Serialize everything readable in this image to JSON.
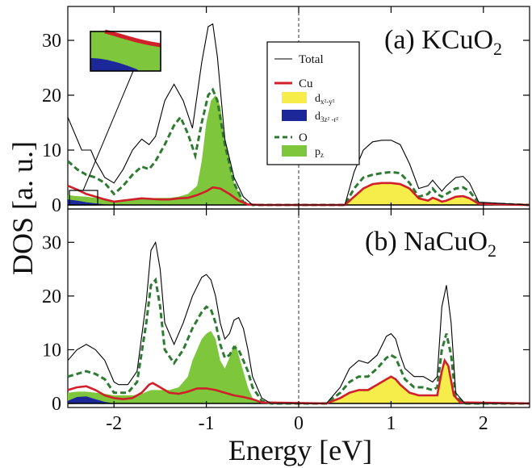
{
  "chart_data": {
    "type": "line",
    "xlabel": "Energy [eV]",
    "ylabel": "DOS [a. u.]",
    "xlim": [
      -2.5,
      2.5
    ],
    "ylim": [
      0,
      35
    ],
    "x_ticks": [
      "-2",
      "-1",
      "0",
      "1",
      "2"
    ],
    "y_ticks": [
      "0",
      "10",
      "20",
      "30"
    ],
    "fermi_level_x": 0,
    "colors": {
      "total": "#000000",
      "cu": "#d0202a",
      "o": "#2e7a32",
      "dx2y2": "#f6ec4a",
      "d3z2r2": "#1c2899",
      "pz": "#7ec63b"
    },
    "legend": {
      "total": "Total",
      "cu": "Cu",
      "dx2y2_main": "d",
      "dx2y2_sub": "x²-y²",
      "d3z2r2_main": "d",
      "d3z2r2_sub": "3z² -r²",
      "o": "O",
      "pz_main": "p",
      "pz_sub": "z"
    },
    "panels": [
      {
        "label_prefix": "(a) KCuO",
        "label_sub": "2",
        "series": {
          "total": {
            "x": [
              -2.5,
              -2.35,
              -2.25,
              -2.2,
              -2.1,
              -2.0,
              -1.9,
              -1.8,
              -1.7,
              -1.62,
              -1.55,
              -1.45,
              -1.35,
              -1.25,
              -1.15,
              -1.05,
              -0.98,
              -0.93,
              -0.88,
              -0.8,
              -0.7,
              -0.6,
              -0.5,
              -0.3,
              0.5,
              0.6,
              0.7,
              0.8,
              0.9,
              1.0,
              1.1,
              1.2,
              1.3,
              1.4,
              1.45,
              1.5,
              1.55,
              1.6,
              1.7,
              1.78,
              1.85,
              1.95,
              2.5
            ],
            "y": [
              16.0,
              10.0,
              10.0,
              8.0,
              5.0,
              4.0,
              6.5,
              10.0,
              12.0,
              11.0,
              12.5,
              19.0,
              22.0,
              19.0,
              14.0,
              26.0,
              32.5,
              33.0,
              27.0,
              12.0,
              5.0,
              1.5,
              0.0,
              0.0,
              0.0,
              6.0,
              10.0,
              11.5,
              11.8,
              11.8,
              11.0,
              7.5,
              3.0,
              3.5,
              4.5,
              3.5,
              2.5,
              3.5,
              5.0,
              5.2,
              4.0,
              0.5,
              0.0
            ]
          },
          "o": {
            "x": [
              -2.5,
              -2.4,
              -2.3,
              -2.2,
              -2.1,
              -2.0,
              -1.9,
              -1.8,
              -1.7,
              -1.62,
              -1.55,
              -1.45,
              -1.35,
              -1.28,
              -1.2,
              -1.12,
              -1.05,
              -0.98,
              -0.93,
              -0.88,
              -0.8,
              -0.7,
              -0.6,
              -0.5,
              -0.3,
              0.5,
              0.6,
              0.7,
              0.8,
              0.9,
              1.0,
              1.1,
              1.2,
              1.3,
              1.4,
              1.45,
              1.5,
              1.55,
              1.6,
              1.7,
              1.78,
              1.85,
              1.95,
              2.5
            ],
            "y": [
              8.0,
              6.5,
              5.5,
              5.0,
              4.0,
              2.0,
              3.5,
              5.5,
              7.0,
              6.5,
              8.0,
              11.0,
              14.5,
              16.0,
              13.0,
              9.0,
              15.0,
              20.0,
              21.0,
              19.0,
              11.0,
              4.0,
              0.5,
              0.0,
              0.0,
              0.0,
              3.0,
              5.0,
              5.5,
              5.8,
              6.0,
              5.8,
              4.0,
              1.5,
              2.0,
              3.0,
              2.0,
              1.5,
              2.0,
              3.0,
              3.2,
              2.5,
              0.3,
              0.0
            ]
          },
          "pz": {
            "x": [
              -2.5,
              -2.4,
              -2.3,
              -2.2,
              -2.1,
              -2.0,
              -1.9,
              -1.8,
              -1.7,
              -1.6,
              -1.5,
              -1.4,
              -1.3,
              -1.2,
              -1.1,
              -1.05,
              -1.0,
              -0.95,
              -0.9,
              -0.85,
              -0.8,
              -0.7,
              -0.6,
              -0.5,
              -0.3,
              2.5
            ],
            "y": [
              1.8,
              1.6,
              1.5,
              1.3,
              1.0,
              0.5,
              0.8,
              1.0,
              1.3,
              1.2,
              1.3,
              1.3,
              1.5,
              2.0,
              3.5,
              8.0,
              15.0,
              19.0,
              20.0,
              18.0,
              12.0,
              4.0,
              0.5,
              0.0,
              0.0,
              0.0
            ]
          },
          "cu": {
            "x": [
              -2.5,
              -2.4,
              -2.3,
              -2.2,
              -2.1,
              -2.0,
              -1.9,
              -1.8,
              -1.7,
              -1.6,
              -1.5,
              -1.4,
              -1.3,
              -1.2,
              -1.1,
              -1.0,
              -0.93,
              -0.85,
              -0.75,
              -0.65,
              -0.55,
              -0.4,
              0.5,
              0.6,
              0.7,
              0.8,
              0.9,
              1.0,
              1.1,
              1.2,
              1.3,
              1.4,
              1.45,
              1.5,
              1.55,
              1.6,
              1.7,
              1.78,
              1.85,
              1.95,
              2.5
            ],
            "y": [
              3.5,
              2.8,
              2.0,
              1.5,
              1.0,
              0.6,
              0.8,
              1.0,
              1.2,
              1.1,
              1.0,
              1.0,
              1.2,
              1.3,
              1.8,
              2.5,
              3.2,
              3.0,
              2.0,
              0.8,
              0.1,
              0.0,
              0.0,
              1.5,
              3.0,
              3.8,
              4.0,
              4.0,
              3.8,
              3.0,
              1.2,
              0.8,
              1.3,
              1.0,
              0.6,
              0.8,
              1.5,
              1.6,
              1.2,
              0.2,
              0.0
            ]
          },
          "dx2y2": {
            "x": [
              -2.5,
              0.5,
              0.6,
              0.7,
              0.8,
              0.9,
              1.0,
              1.1,
              1.2,
              1.3,
              1.4,
              1.45,
              1.5,
              1.55,
              1.6,
              1.7,
              1.78,
              1.85,
              1.95,
              2.5
            ],
            "y": [
              0.0,
              0.0,
              1.5,
              3.0,
              3.8,
              4.0,
              4.0,
              3.8,
              3.0,
              1.2,
              0.8,
              1.3,
              1.0,
              0.6,
              0.8,
              1.5,
              1.6,
              1.2,
              0.2,
              0.0
            ]
          },
          "d3z2r2": {
            "x": [
              -2.5,
              -2.4,
              -2.3,
              -2.2,
              -2.1,
              -2.0,
              2.5
            ],
            "y": [
              1.0,
              0.8,
              0.5,
              0.3,
              0.1,
              0.0,
              0.0
            ]
          }
        }
      },
      {
        "label_prefix": "(b) NaCuO",
        "label_sub": "2",
        "series": {
          "total": {
            "x": [
              -2.5,
              -2.4,
              -2.3,
              -2.2,
              -2.1,
              -2.0,
              -1.95,
              -1.85,
              -1.75,
              -1.65,
              -1.6,
              -1.55,
              -1.5,
              -1.45,
              -1.35,
              -1.25,
              -1.15,
              -1.05,
              -1.0,
              -0.95,
              -0.9,
              -0.85,
              -0.8,
              -0.75,
              -0.7,
              -0.65,
              -0.6,
              -0.55,
              -0.5,
              -0.4,
              -0.3,
              0.3,
              0.45,
              0.55,
              0.65,
              0.75,
              0.85,
              0.95,
              1.0,
              1.05,
              1.1,
              1.15,
              1.25,
              1.35,
              1.45,
              1.5,
              1.55,
              1.6,
              1.65,
              1.7,
              1.8,
              2.5
            ],
            "y": [
              8.0,
              10.0,
              11.0,
              10.0,
              8.0,
              4.0,
              3.5,
              3.5,
              6.0,
              19.0,
              28.5,
              30.0,
              25.0,
              15.0,
              11.0,
              15.0,
              20.0,
              23.5,
              24.0,
              23.0,
              20.0,
              15.0,
              12.0,
              13.0,
              15.5,
              16.0,
              14.0,
              10.0,
              5.0,
              1.0,
              0.0,
              0.0,
              3.0,
              6.5,
              8.0,
              7.5,
              9.0,
              12.5,
              13.0,
              12.0,
              9.0,
              6.5,
              5.0,
              5.0,
              4.0,
              5.0,
              18.0,
              22.0,
              15.0,
              2.0,
              0.0,
              0.0
            ]
          },
          "o": {
            "x": [
              -2.5,
              -2.4,
              -2.3,
              -2.2,
              -2.1,
              -2.0,
              -1.95,
              -1.85,
              -1.75,
              -1.65,
              -1.6,
              -1.55,
              -1.5,
              -1.45,
              -1.35,
              -1.25,
              -1.15,
              -1.05,
              -1.0,
              -0.95,
              -0.9,
              -0.85,
              -0.8,
              -0.75,
              -0.7,
              -0.65,
              -0.6,
              -0.55,
              -0.5,
              -0.4,
              -0.3,
              0.3,
              0.45,
              0.55,
              0.65,
              0.75,
              0.85,
              0.95,
              1.0,
              1.05,
              1.1,
              1.15,
              1.25,
              1.35,
              1.45,
              1.5,
              1.55,
              1.6,
              1.65,
              1.7,
              1.8,
              2.5
            ],
            "y": [
              5.0,
              5.5,
              6.0,
              5.5,
              4.5,
              2.0,
              2.0,
              2.0,
              4.0,
              15.0,
              22.0,
              23.0,
              18.0,
              10.0,
              7.5,
              10.0,
              14.0,
              17.0,
              18.0,
              17.5,
              15.0,
              11.0,
              8.5,
              9.0,
              10.5,
              10.0,
              8.0,
              6.0,
              3.0,
              0.5,
              0.0,
              0.0,
              2.0,
              4.0,
              5.0,
              5.0,
              6.5,
              8.5,
              9.0,
              8.5,
              6.5,
              4.5,
              3.0,
              3.0,
              2.5,
              3.0,
              10.0,
              13.0,
              9.0,
              1.2,
              0.0,
              0.0
            ]
          },
          "pz": {
            "x": [
              -2.5,
              -2.4,
              -2.3,
              -2.2,
              -2.1,
              -2.0,
              -1.9,
              -1.8,
              -1.7,
              -1.6,
              -1.5,
              -1.4,
              -1.3,
              -1.2,
              -1.15,
              -1.1,
              -1.05,
              -1.0,
              -0.95,
              -0.9,
              -0.85,
              -0.8,
              -0.75,
              -0.72,
              -0.68,
              -0.65,
              -0.6,
              -0.55,
              -0.5,
              -0.4,
              -0.3,
              2.5
            ],
            "y": [
              2.0,
              2.2,
              2.2,
              2.0,
              1.8,
              1.5,
              1.5,
              1.5,
              1.8,
              2.5,
              2.5,
              2.5,
              3.0,
              5.0,
              8.0,
              10.0,
              12.0,
              13.0,
              13.5,
              12.0,
              8.0,
              6.5,
              8.5,
              10.0,
              11.0,
              9.0,
              6.0,
              3.0,
              1.0,
              0.2,
              0.0,
              0.0
            ]
          },
          "cu": {
            "x": [
              -2.5,
              -2.4,
              -2.3,
              -2.2,
              -2.1,
              -2.0,
              -1.9,
              -1.8,
              -1.7,
              -1.62,
              -1.58,
              -1.5,
              -1.4,
              -1.3,
              -1.2,
              -1.1,
              -1.0,
              -0.9,
              -0.8,
              -0.7,
              -0.6,
              -0.5,
              -0.4,
              0.3,
              0.45,
              0.55,
              0.65,
              0.75,
              0.85,
              0.95,
              1.0,
              1.05,
              1.1,
              1.2,
              1.3,
              1.4,
              1.5,
              1.55,
              1.58,
              1.62,
              1.68,
              1.75,
              2.5
            ],
            "y": [
              2.5,
              3.0,
              3.2,
              2.5,
              1.5,
              1.0,
              0.8,
              1.0,
              2.0,
              3.5,
              3.8,
              3.0,
              2.0,
              1.8,
              2.2,
              2.8,
              2.8,
              2.5,
              2.0,
              1.5,
              1.2,
              0.8,
              0.2,
              0.0,
              1.0,
              2.0,
              2.5,
              2.5,
              3.5,
              4.5,
              5.0,
              4.5,
              3.5,
              2.0,
              1.5,
              1.5,
              1.5,
              6.0,
              8.0,
              7.0,
              1.5,
              0.2,
              0.0
            ]
          },
          "dx2y2": {
            "x": [
              -2.5,
              0.3,
              0.45,
              0.55,
              0.65,
              0.75,
              0.85,
              0.95,
              1.0,
              1.05,
              1.1,
              1.2,
              1.3,
              1.4,
              1.5,
              1.55,
              1.58,
              1.62,
              1.68,
              1.75,
              2.5
            ],
            "y": [
              0.0,
              0.0,
              1.0,
              2.0,
              2.5,
              2.5,
              3.5,
              4.5,
              5.0,
              4.5,
              3.5,
              2.0,
              1.5,
              1.5,
              1.5,
              6.0,
              8.0,
              7.0,
              1.5,
              0.2,
              0.0
            ]
          },
          "d3z2r2": {
            "x": [
              -2.5,
              -2.4,
              -2.3,
              -2.2,
              -2.1,
              -2.0,
              2.5
            ],
            "y": [
              0.5,
              1.2,
              1.3,
              0.8,
              0.3,
              0.0,
              0.0
            ]
          }
        }
      }
    ]
  }
}
